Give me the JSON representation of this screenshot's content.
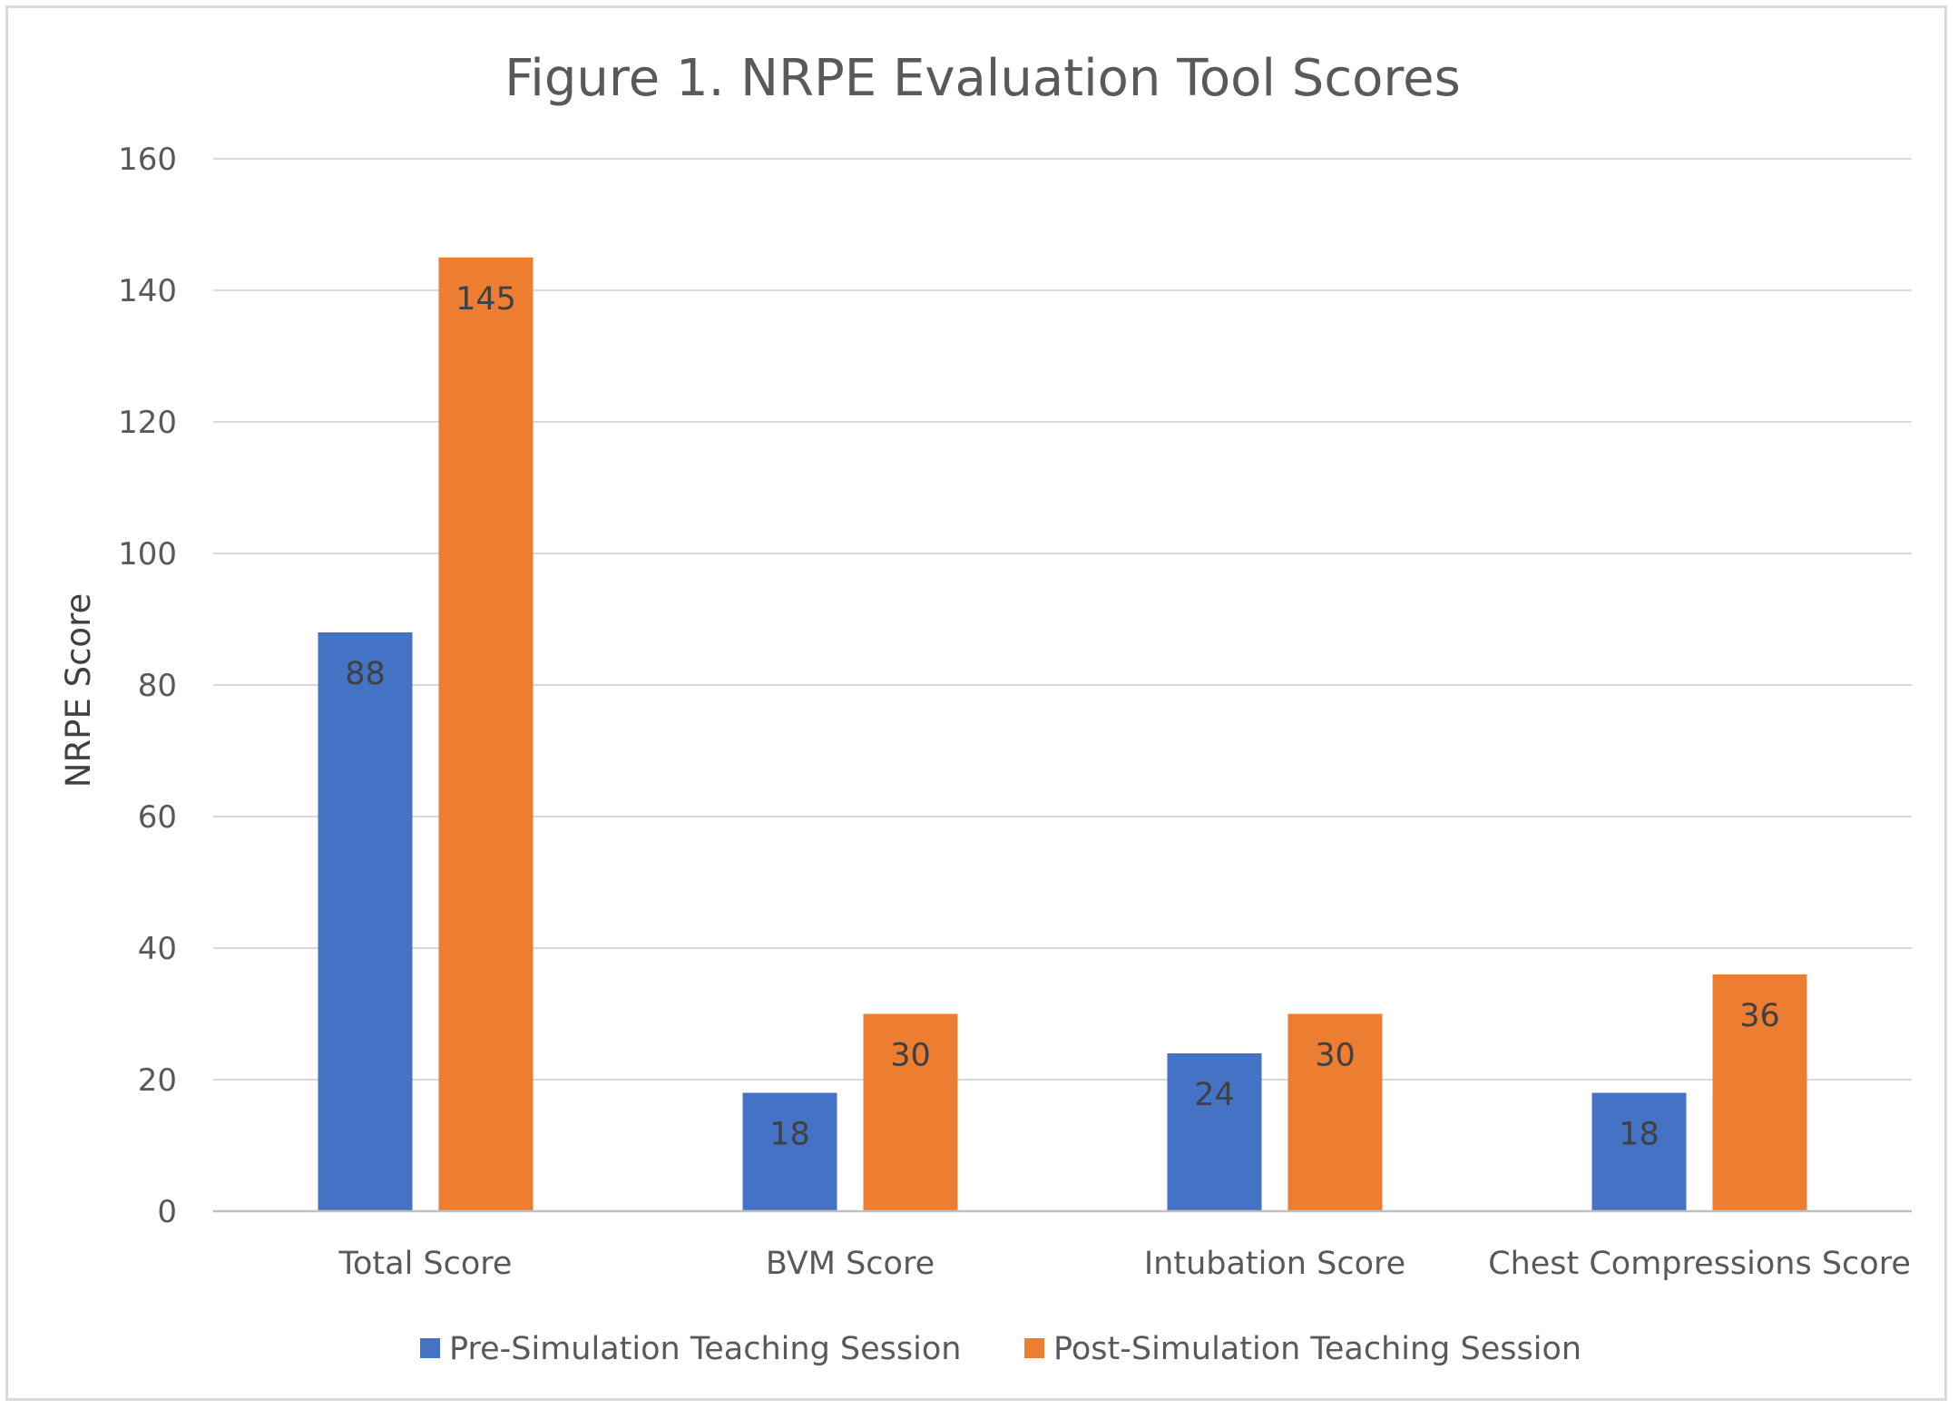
{
  "chart_data": {
    "type": "bar",
    "title": "Figure 1. NRPE Evaluation Tool Scores",
    "xlabel": "",
    "ylabel": "NRPE Score",
    "ylim": [
      0,
      160
    ],
    "yticks": [
      0,
      20,
      40,
      60,
      80,
      100,
      120,
      140,
      160
    ],
    "grid": true,
    "legend_position": "bottom",
    "categories": [
      "Total Score",
      "BVM Score",
      "Intubation Score",
      "Chest Compressions Score"
    ],
    "series": [
      {
        "name": "Pre-Simulation Teaching Session",
        "color": "#4472c4",
        "values": [
          88,
          18,
          24,
          18
        ]
      },
      {
        "name": "Post-Simulation Teaching Session",
        "color": "#ed7d31",
        "values": [
          145,
          30,
          30,
          36
        ]
      }
    ]
  }
}
